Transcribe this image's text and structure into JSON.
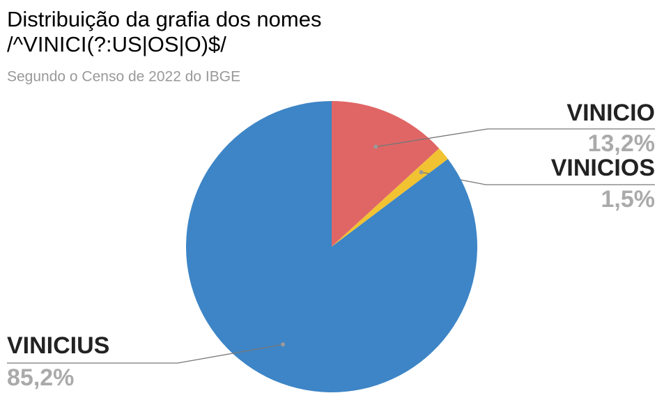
{
  "chart_data": {
    "type": "pie",
    "title": [
      "Distribuição da grafia dos nomes",
      "/^VINICI(?:US|OS|O)$/"
    ],
    "subtitle": "Segundo o Censo de 2022 do IBGE",
    "categories": [
      "VINICIO",
      "VINICIOS",
      "VINICIUS"
    ],
    "values": [
      13.2,
      1.5,
      85.2
    ],
    "value_labels": [
      "13,2%",
      "1,5%",
      "85,2%"
    ],
    "colors": [
      "#e06666",
      "#f1c232",
      "#3d85c6"
    ]
  }
}
